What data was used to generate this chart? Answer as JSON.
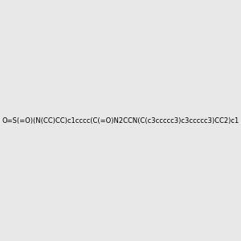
{
  "smiles": "O=S(=O)(N(CC)CC)c1cccc(C(=O)N2CCN(C(c3ccccc3)c3ccccc3)CC2)c1",
  "background_color": "#e8e8e8",
  "fig_width": 3.0,
  "fig_height": 3.0,
  "dpi": 100,
  "atom_colors": {
    "N": "#0000ff",
    "O": "#ff0000",
    "S": "#cccc00",
    "C": "#000000"
  },
  "bond_color": "#000000",
  "title": ""
}
